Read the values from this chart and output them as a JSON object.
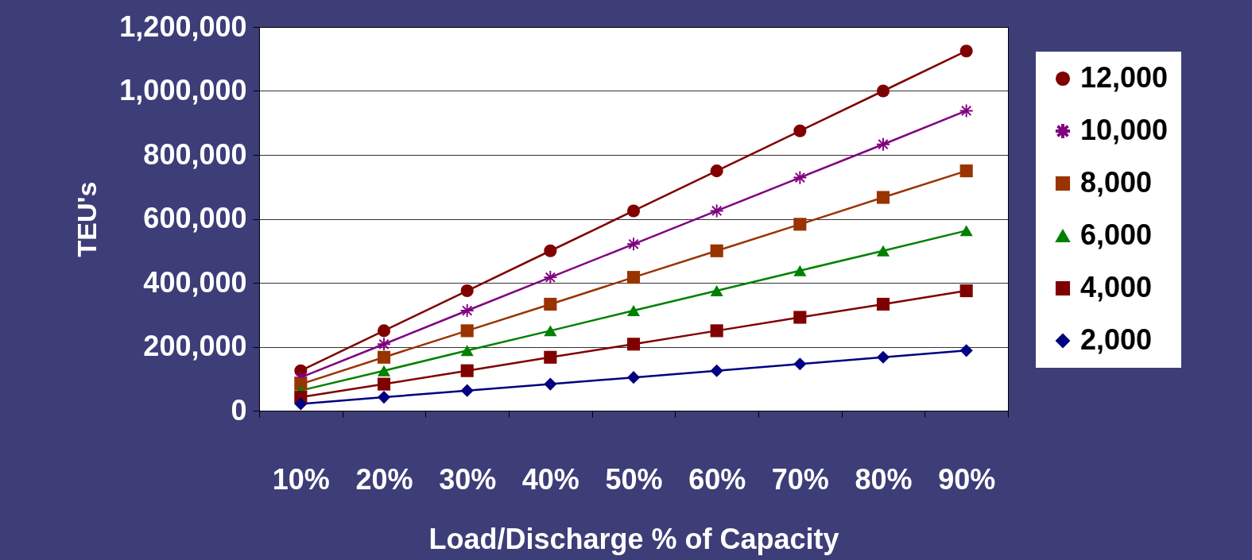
{
  "chart_data": {
    "type": "line",
    "xlabel": "Load/Discharge % of Capacity",
    "ylabel": "TEU's",
    "categories": [
      "10%",
      "20%",
      "30%",
      "40%",
      "50%",
      "60%",
      "70%",
      "80%",
      "90%"
    ],
    "ylim": [
      0,
      1200000
    ],
    "yticks": [
      0,
      {
        "value": 200000,
        "label": "200,000"
      },
      {
        "value": 400000,
        "label": "400,000"
      },
      {
        "value": 600000,
        "label": "600,000"
      },
      {
        "value": 800000,
        "label": "800,000"
      },
      {
        "value": 1000000,
        "label": "1,000,000"
      },
      {
        "value": 1200000,
        "label": "1,200,000"
      }
    ],
    "grid": "y",
    "legend": "right",
    "series": [
      {
        "name": "12,000",
        "color": "#800000",
        "marker": "circle",
        "values": [
          125000,
          250000,
          375000,
          500000,
          625000,
          750000,
          875000,
          1000000,
          1125000
        ]
      },
      {
        "name": "10,000",
        "color": "#800080",
        "marker": "cross",
        "values": [
          104000,
          208000,
          313000,
          417000,
          521000,
          625000,
          729000,
          833000,
          938000
        ]
      },
      {
        "name": "8,000",
        "color": "#993300",
        "marker": "square",
        "values": [
          83000,
          167000,
          250000,
          333000,
          417000,
          500000,
          583000,
          667000,
          750000
        ]
      },
      {
        "name": "6,000",
        "color": "#008000",
        "marker": "triangle",
        "values": [
          63000,
          125000,
          188000,
          250000,
          313000,
          375000,
          438000,
          500000,
          563000
        ]
      },
      {
        "name": "4,000",
        "color": "#800000",
        "marker": "square",
        "values": [
          42000,
          83000,
          125000,
          167000,
          208000,
          250000,
          292000,
          333000,
          375000
        ]
      },
      {
        "name": "2,000",
        "color": "#000080",
        "marker": "diamond",
        "values": [
          21000,
          42000,
          63000,
          83000,
          104000,
          125000,
          146000,
          167000,
          188000
        ]
      }
    ]
  }
}
